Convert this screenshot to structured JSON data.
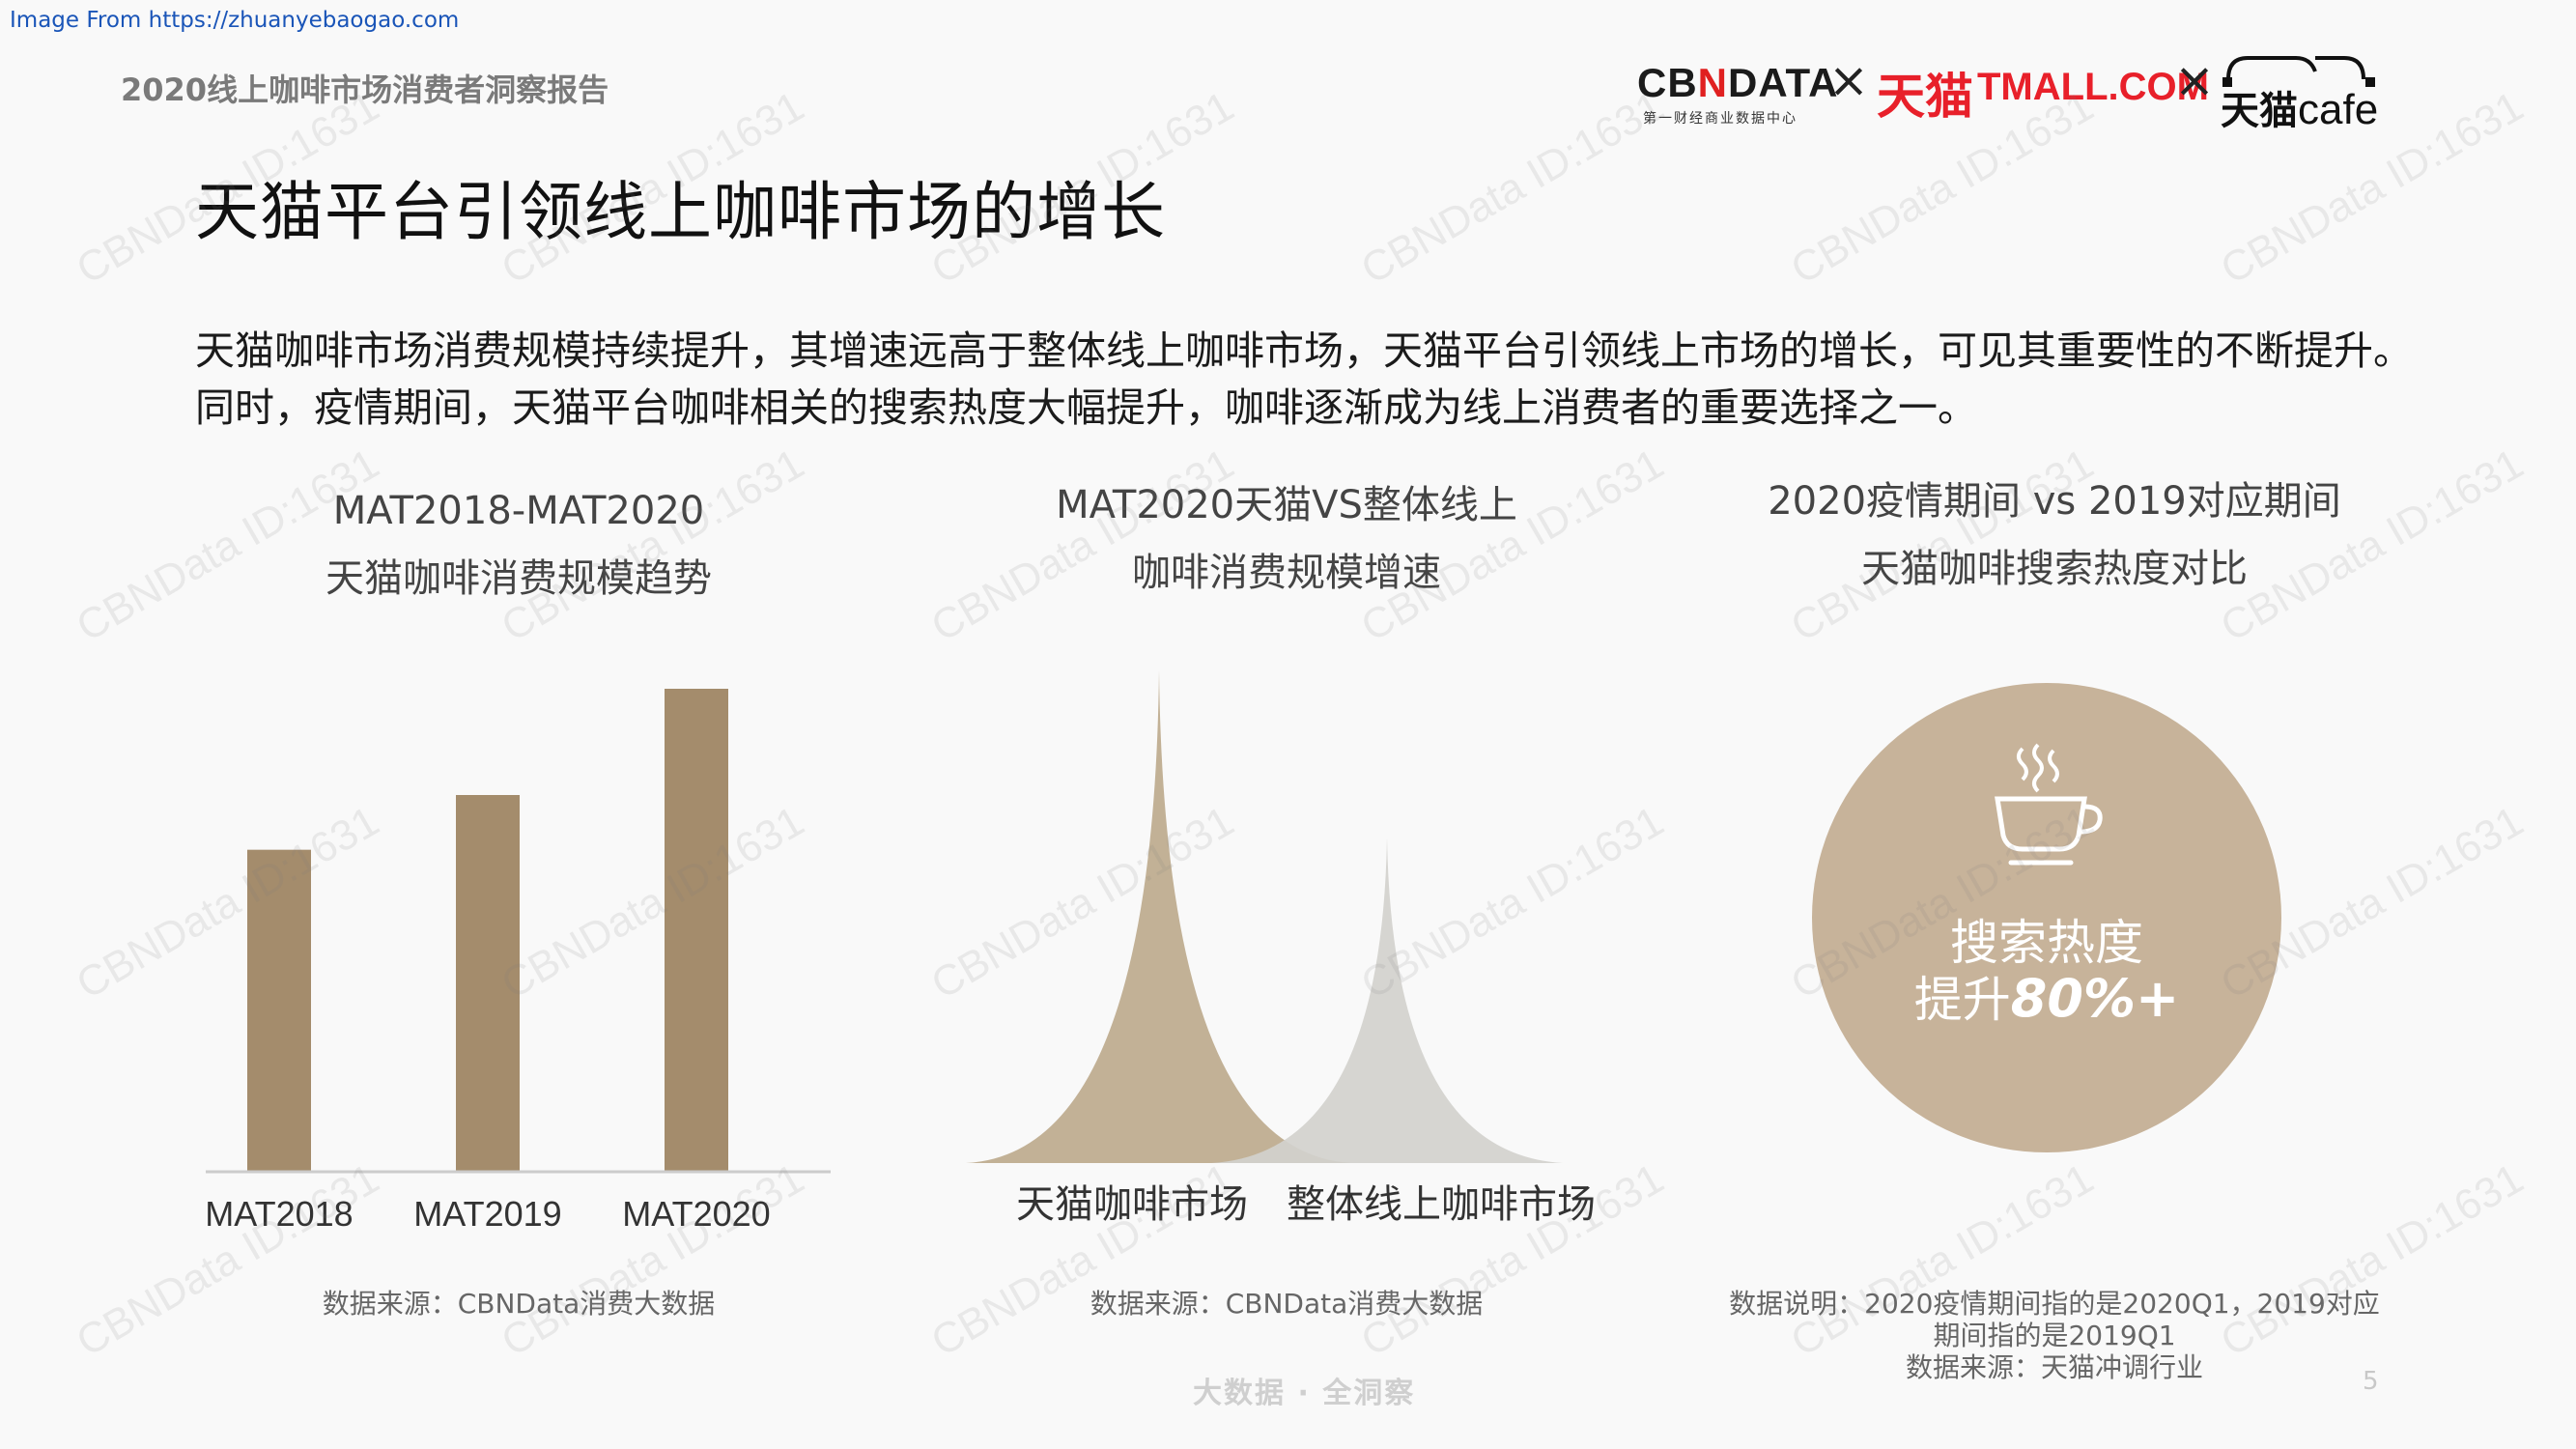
{
  "source_link": "Image From https://zhuanyebaogao.com",
  "header": {
    "report_title": "2020线上咖啡市场消费者洞察报告",
    "logos": {
      "cbndata": "CBNDATA",
      "cbndata_part1": "CB",
      "cbndata_n": "N",
      "cbndata_part2": "DATA",
      "cbndata_sub": "第一财经商业数据中心",
      "times": "×",
      "tmall_cn": "天猫",
      "tmall_en": "TMALL.COM",
      "cafe": "天猫cafe",
      "cafe_cn": "天猫",
      "cafe_en": "cafe"
    }
  },
  "page_heading": "天猫平台引领线上咖啡市场的增长",
  "intro_text": "天猫咖啡市场消费规模持续提升，其增速远高于整体线上咖啡市场，天猫平台引领线上市场的增长，可见其重要性的不断提升。同时，疫情期间，天猫平台咖啡相关的搜索热度大幅提升，咖啡逐渐成为线上消费者的重要选择之一。",
  "chart_data": [
    {
      "type": "bar",
      "title_line1": "MAT2018-MAT2020",
      "title_line2": "天猫咖啡消费规模趋势",
      "categories": [
        "MAT2018",
        "MAT2019",
        "MAT2020"
      ],
      "values": [
        100,
        117,
        150
      ],
      "bar_color": "#a48c6c",
      "source": "数据来源：CBNData消费大数据"
    },
    {
      "type": "area",
      "title_line1": "MAT2020天猫VS整体线上",
      "title_line2": "咖啡消费规模增速",
      "series": [
        {
          "name": "天猫咖啡市场",
          "value": 100,
          "color": "#c2b196"
        },
        {
          "name": "整体线上咖啡市场",
          "value": 66,
          "color": "#d3d1cd"
        }
      ],
      "source": "数据来源：CBNData消费大数据"
    },
    {
      "type": "table",
      "title_line1": "2020疫情期间 vs 2019对应期间",
      "title_line2": "天猫咖啡搜索热度对比",
      "circle_label_line1": "搜索热度",
      "circle_label_prefix": "提升",
      "circle_value": "80%+",
      "circle_color": "#c7b39a",
      "note_line1": "数据说明：2020疫情期间指的是2020Q1，2019对应",
      "note_line2": "期间指的是2019Q1",
      "note_line3": "数据来源：天猫冲调行业"
    }
  ],
  "watermark_text": "CBNData ID:1631",
  "footer": {
    "slogan": "大数据 · 全洞察",
    "page_number": "5"
  }
}
